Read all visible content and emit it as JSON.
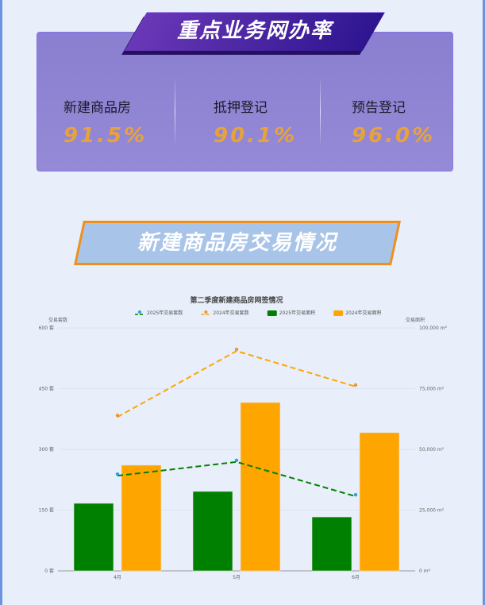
{
  "section1": {
    "title": "重点业务网办率",
    "stats": [
      {
        "label": "新建商品房",
        "value": "91.5%"
      },
      {
        "label": "抵押登记",
        "value": "90.1%"
      },
      {
        "label": "预告登记",
        "value": "96.0%"
      }
    ]
  },
  "section2": {
    "title": "新建商品房交易情况"
  },
  "chart_data": {
    "type": "bar",
    "title": "第二季度新建商品房网签情况",
    "categories": [
      "4月",
      "5月",
      "6月"
    ],
    "left_axis": {
      "label": "交易套数",
      "unit": "套",
      "range": [
        0,
        600
      ],
      "ticks": [
        "0 套",
        "150 套",
        "300 套",
        "450 套",
        "600 套"
      ]
    },
    "right_axis": {
      "label": "交易面积",
      "unit": "m²",
      "range": [
        0,
        100000
      ],
      "ticks": [
        "0 m²",
        "25,000 m²",
        "50,000 m²",
        "75,000 m²",
        "100,000 m²"
      ]
    },
    "series": [
      {
        "name": "2025年交易套数",
        "type": "line",
        "axis": "left",
        "style": "dashed",
        "color": "#008000",
        "marker_color": "#2fa0d8",
        "values": [
          235,
          269,
          184
        ]
      },
      {
        "name": "2024年交易套数",
        "type": "line",
        "axis": "left",
        "style": "dashed",
        "color": "#ffa500",
        "marker_color": "#e8963a",
        "values": [
          380,
          543,
          455
        ]
      },
      {
        "name": "2025年交易面积",
        "type": "bar",
        "axis": "right",
        "color": "#008000",
        "values": [
          27800,
          32700,
          22200
        ]
      },
      {
        "name": "2024年交易面积",
        "type": "bar",
        "axis": "right",
        "color": "#ffa500",
        "values": [
          43500,
          69300,
          56900
        ]
      }
    ],
    "grid": true,
    "legend": "top"
  }
}
